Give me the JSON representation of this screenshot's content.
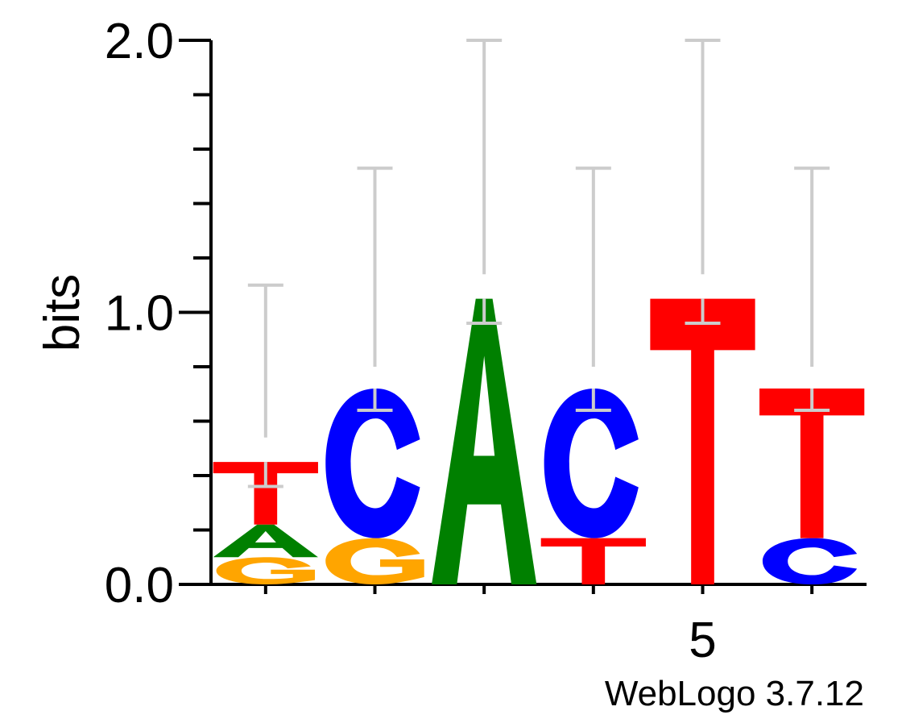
{
  "chart_data": {
    "type": "sequence-logo",
    "ylabel": "bits",
    "ylim": [
      0,
      2
    ],
    "y_ticks": [
      "0.0",
      "1.0",
      "2.0"
    ],
    "x_tick_labels": [
      {
        "position": 5,
        "label": "5"
      }
    ],
    "footer": "WebLogo 3.7.12",
    "colors": {
      "A": "#008000",
      "C": "#0000ff",
      "G": "#ffa500",
      "T": "#ff0000",
      "error_bar": "#cccccc"
    },
    "positions": [
      {
        "position": 1,
        "stack": [
          {
            "letter": "G",
            "bits": 0.1
          },
          {
            "letter": "A",
            "bits": 0.12
          },
          {
            "letter": "T",
            "bits": 0.23
          }
        ],
        "error": [
          0.54,
          1.1
        ]
      },
      {
        "position": 2,
        "stack": [
          {
            "letter": "G",
            "bits": 0.17
          },
          {
            "letter": "C",
            "bits": 0.55
          }
        ],
        "error": [
          0.8,
          1.53
        ]
      },
      {
        "position": 3,
        "stack": [
          {
            "letter": "A",
            "bits": 1.05
          }
        ],
        "error": [
          1.14,
          2.0
        ]
      },
      {
        "position": 4,
        "stack": [
          {
            "letter": "T",
            "bits": 0.17
          },
          {
            "letter": "C",
            "bits": 0.55
          }
        ],
        "error": [
          0.8,
          1.53
        ]
      },
      {
        "position": 5,
        "stack": [
          {
            "letter": "T",
            "bits": 1.05
          }
        ],
        "error": [
          1.14,
          2.0
        ]
      },
      {
        "position": 6,
        "stack": [
          {
            "letter": "C",
            "bits": 0.17
          },
          {
            "letter": "T",
            "bits": 0.55
          }
        ],
        "error": [
          0.8,
          1.53
        ]
      }
    ]
  }
}
